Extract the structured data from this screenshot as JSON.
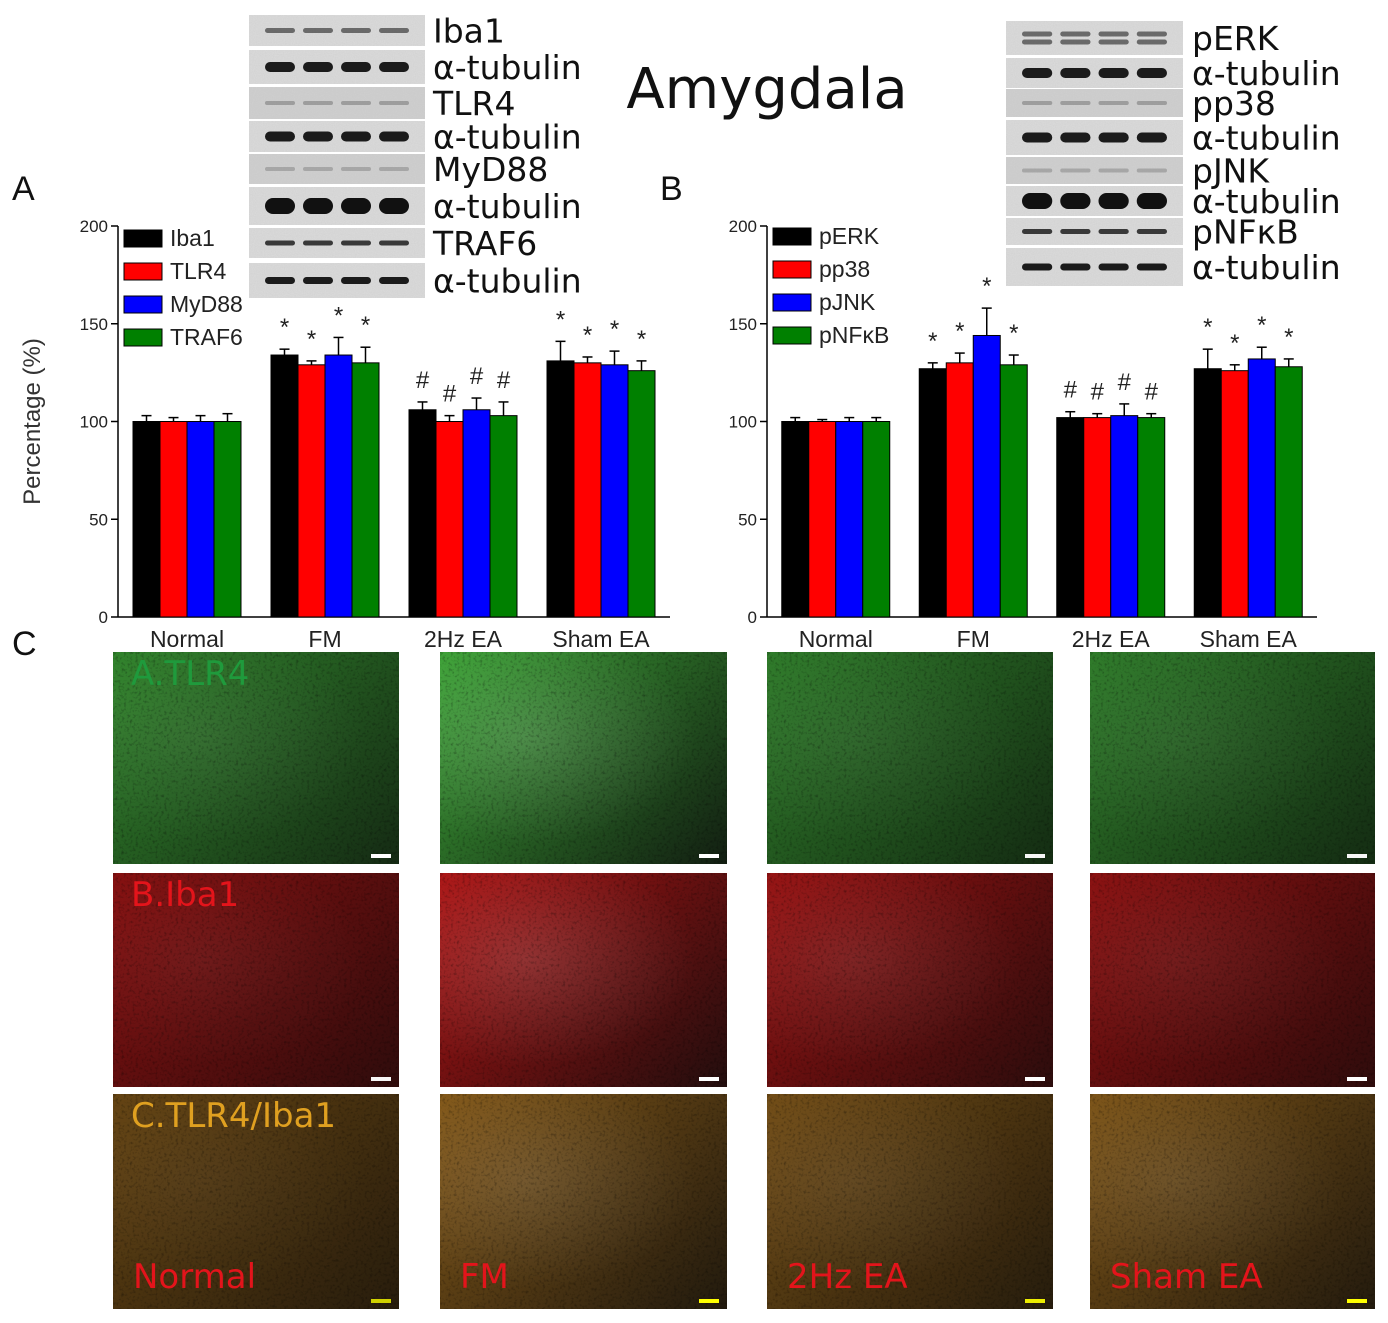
{
  "title": "Amygdala",
  "panel_letters": {
    "a": "A",
    "b": "B",
    "c": "C"
  },
  "colors": {
    "series": [
      "#000000",
      "#ff0000",
      "#0000ff",
      "#008000"
    ],
    "green_stain": "#2f7f2a",
    "red_stain": "#8a1010",
    "merge_stain": "#6e4a14"
  },
  "chart_data": [
    {
      "type": "bar",
      "panel": "A",
      "title": "",
      "xlabel": "",
      "ylabel": "Percentage (%)",
      "ylim": [
        0,
        200
      ],
      "yticks": [
        "0",
        "50",
        "100",
        "150",
        "200"
      ],
      "categories": [
        "Normal",
        "FM",
        "2Hz EA",
        "Sham EA"
      ],
      "legend_position": "top-left",
      "series": [
        {
          "name": "Iba1",
          "color": "#000000",
          "values": [
            100,
            134,
            106,
            131
          ],
          "errors": [
            3,
            3,
            4,
            10
          ]
        },
        {
          "name": "TLR4",
          "color": "#ff0000",
          "values": [
            100,
            129,
            100,
            130
          ],
          "errors": [
            2,
            2,
            3,
            3
          ]
        },
        {
          "name": "MyD88",
          "color": "#0000ff",
          "values": [
            100,
            134,
            106,
            129
          ],
          "errors": [
            3,
            9,
            6,
            7
          ]
        },
        {
          "name": "TRAF6",
          "color": "#008000",
          "values": [
            100,
            130,
            103,
            126
          ],
          "errors": [
            4,
            8,
            7,
            5
          ]
        }
      ],
      "annotations": [
        [
          "",
          "",
          "",
          ""
        ],
        [
          "*",
          "*",
          "*",
          "*"
        ],
        [
          "#",
          "#",
          "#",
          "#"
        ],
        [
          "*",
          "*",
          "*",
          "*"
        ]
      ]
    },
    {
      "type": "bar",
      "panel": "B",
      "title": "",
      "xlabel": "",
      "ylabel": "",
      "ylim": [
        0,
        200
      ],
      "yticks": [
        "0",
        "50",
        "100",
        "150",
        "200"
      ],
      "categories": [
        "Normal",
        "FM",
        "2Hz EA",
        "Sham EA"
      ],
      "legend_position": "top-left",
      "series": [
        {
          "name": "pERK",
          "color": "#000000",
          "values": [
            100,
            127,
            102,
            127
          ],
          "errors": [
            2,
            3,
            3,
            10
          ]
        },
        {
          "name": "pp38",
          "color": "#ff0000",
          "values": [
            100,
            130,
            102,
            126
          ],
          "errors": [
            1,
            5,
            2,
            3
          ]
        },
        {
          "name": "pJNK",
          "color": "#0000ff",
          "values": [
            100,
            144,
            103,
            132
          ],
          "errors": [
            2,
            14,
            6,
            6
          ]
        },
        {
          "name": "pNFκB",
          "color": "#008000",
          "values": [
            100,
            129,
            102,
            128
          ],
          "errors": [
            2,
            5,
            2,
            4
          ]
        }
      ],
      "annotations": [
        [
          "",
          "",
          "",
          ""
        ],
        [
          "*",
          "*",
          "*",
          "*"
        ],
        [
          "#",
          "#",
          "#",
          "#"
        ],
        [
          "*",
          "*",
          "*",
          "*"
        ]
      ]
    }
  ],
  "blots_a": [
    "Iba1",
    "α-tubulin",
    "TLR4",
    "α-tubulin",
    "MyD88",
    "α-tubulin",
    "TRAF6",
    "α-tubulin"
  ],
  "blots_b": [
    "pERK",
    "α-tubulin",
    "pp38",
    "α-tubulin",
    "pJNK",
    "α-tubulin",
    "pNFκB",
    "α-tubulin"
  ],
  "micrographs": {
    "row_labels": [
      "A.TLR4",
      "B.Iba1",
      "C.TLR4/Iba1"
    ],
    "group_labels": [
      "Normal",
      "FM",
      "2Hz EA",
      "Sham EA"
    ]
  }
}
